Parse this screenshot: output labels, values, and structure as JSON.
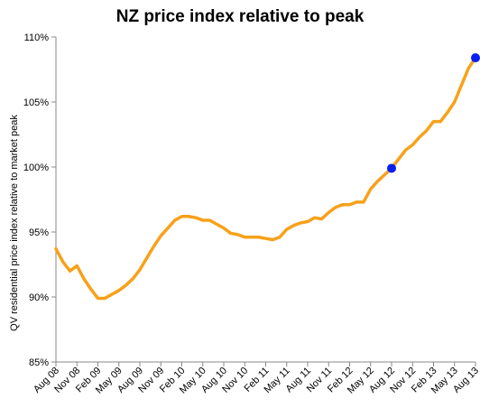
{
  "chart_data": {
    "type": "line",
    "title": "NZ price index relative to peak",
    "ylabel": "QV residential price index relative to market peak",
    "xlabel": "",
    "ylim": [
      85,
      110
    ],
    "y_ticks": [
      85,
      90,
      95,
      100,
      105,
      110
    ],
    "y_tick_labels": [
      "85%",
      "90%",
      "95%",
      "100%",
      "105%",
      "110%"
    ],
    "x_tick_labels": [
      "Aug 08",
      "Nov 08",
      "Feb 09",
      "May 09",
      "Aug 09",
      "Nov 09",
      "Feb 10",
      "May 10",
      "Aug 10",
      "Nov 10",
      "Feb 11",
      "May 11",
      "Aug 11",
      "Nov 11",
      "Feb 12",
      "May 12",
      "Aug 12",
      "Nov 12",
      "Feb 13",
      "May 13",
      "Aug 13"
    ],
    "grid": false,
    "colors": {
      "line": "#f7a11a",
      "marker": "#0a1ef0",
      "axis": "#888888"
    },
    "series": [
      {
        "values": [
          93.7,
          92.7,
          92.0,
          92.4,
          91.4,
          90.6,
          89.9,
          89.9,
          90.2,
          90.5,
          90.9,
          91.4,
          92.1,
          93.0,
          93.9,
          94.7,
          95.3,
          95.9,
          96.2,
          96.2,
          96.1,
          95.9,
          95.9,
          95.6,
          95.3,
          94.9,
          94.8,
          94.6,
          94.6,
          94.6,
          94.5,
          94.4,
          94.6,
          95.2,
          95.5,
          95.7,
          95.8,
          96.1,
          96.0,
          96.5,
          96.9,
          97.1,
          97.1,
          97.3,
          97.3,
          98.3,
          98.9,
          99.4,
          99.9,
          100.6,
          101.3,
          101.7,
          102.3,
          102.8,
          103.5,
          103.5,
          104.2,
          105.0,
          106.3,
          107.6,
          108.4
        ]
      }
    ],
    "highlight_points": [
      {
        "month_index": 48,
        "value": 99.9
      },
      {
        "month_index": 60,
        "value": 108.4
      }
    ]
  }
}
